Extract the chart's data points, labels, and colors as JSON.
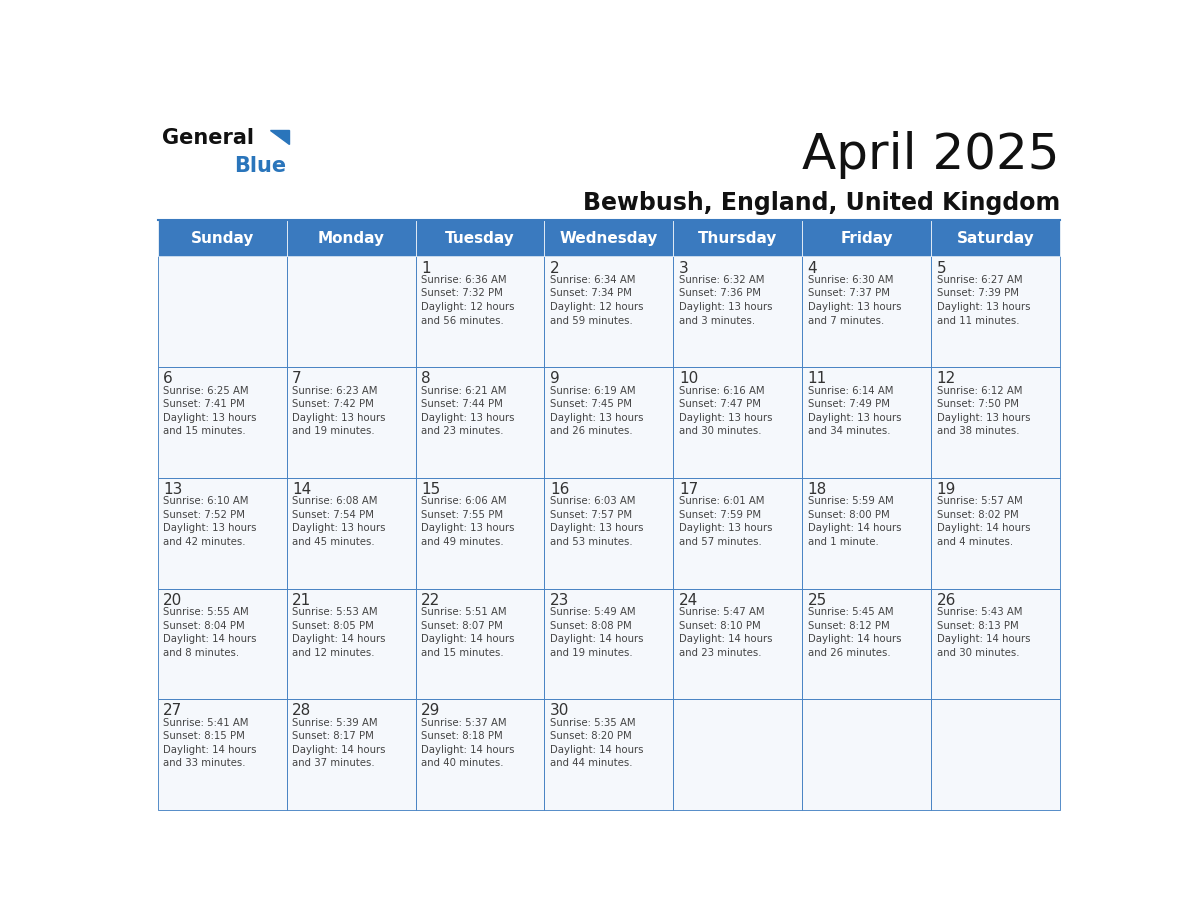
{
  "title": "April 2025",
  "subtitle": "Bewbush, England, United Kingdom",
  "header_color": "#3a7abf",
  "header_text_color": "#ffffff",
  "cell_bg_color": "#f5f8fc",
  "border_color": "#3a7abf",
  "text_color": "#333333",
  "day_num_color": "#333333",
  "logo_general_color": "#222222",
  "logo_blue_color": "#2a75bb",
  "day_names": [
    "Sunday",
    "Monday",
    "Tuesday",
    "Wednesday",
    "Thursday",
    "Friday",
    "Saturday"
  ],
  "weeks": [
    [
      {
        "day": 0,
        "text": ""
      },
      {
        "day": 0,
        "text": ""
      },
      {
        "day": 1,
        "text": "Sunrise: 6:36 AM\nSunset: 7:32 PM\nDaylight: 12 hours\nand 56 minutes."
      },
      {
        "day": 2,
        "text": "Sunrise: 6:34 AM\nSunset: 7:34 PM\nDaylight: 12 hours\nand 59 minutes."
      },
      {
        "day": 3,
        "text": "Sunrise: 6:32 AM\nSunset: 7:36 PM\nDaylight: 13 hours\nand 3 minutes."
      },
      {
        "day": 4,
        "text": "Sunrise: 6:30 AM\nSunset: 7:37 PM\nDaylight: 13 hours\nand 7 minutes."
      },
      {
        "day": 5,
        "text": "Sunrise: 6:27 AM\nSunset: 7:39 PM\nDaylight: 13 hours\nand 11 minutes."
      }
    ],
    [
      {
        "day": 6,
        "text": "Sunrise: 6:25 AM\nSunset: 7:41 PM\nDaylight: 13 hours\nand 15 minutes."
      },
      {
        "day": 7,
        "text": "Sunrise: 6:23 AM\nSunset: 7:42 PM\nDaylight: 13 hours\nand 19 minutes."
      },
      {
        "day": 8,
        "text": "Sunrise: 6:21 AM\nSunset: 7:44 PM\nDaylight: 13 hours\nand 23 minutes."
      },
      {
        "day": 9,
        "text": "Sunrise: 6:19 AM\nSunset: 7:45 PM\nDaylight: 13 hours\nand 26 minutes."
      },
      {
        "day": 10,
        "text": "Sunrise: 6:16 AM\nSunset: 7:47 PM\nDaylight: 13 hours\nand 30 minutes."
      },
      {
        "day": 11,
        "text": "Sunrise: 6:14 AM\nSunset: 7:49 PM\nDaylight: 13 hours\nand 34 minutes."
      },
      {
        "day": 12,
        "text": "Sunrise: 6:12 AM\nSunset: 7:50 PM\nDaylight: 13 hours\nand 38 minutes."
      }
    ],
    [
      {
        "day": 13,
        "text": "Sunrise: 6:10 AM\nSunset: 7:52 PM\nDaylight: 13 hours\nand 42 minutes."
      },
      {
        "day": 14,
        "text": "Sunrise: 6:08 AM\nSunset: 7:54 PM\nDaylight: 13 hours\nand 45 minutes."
      },
      {
        "day": 15,
        "text": "Sunrise: 6:06 AM\nSunset: 7:55 PM\nDaylight: 13 hours\nand 49 minutes."
      },
      {
        "day": 16,
        "text": "Sunrise: 6:03 AM\nSunset: 7:57 PM\nDaylight: 13 hours\nand 53 minutes."
      },
      {
        "day": 17,
        "text": "Sunrise: 6:01 AM\nSunset: 7:59 PM\nDaylight: 13 hours\nand 57 minutes."
      },
      {
        "day": 18,
        "text": "Sunrise: 5:59 AM\nSunset: 8:00 PM\nDaylight: 14 hours\nand 1 minute."
      },
      {
        "day": 19,
        "text": "Sunrise: 5:57 AM\nSunset: 8:02 PM\nDaylight: 14 hours\nand 4 minutes."
      }
    ],
    [
      {
        "day": 20,
        "text": "Sunrise: 5:55 AM\nSunset: 8:04 PM\nDaylight: 14 hours\nand 8 minutes."
      },
      {
        "day": 21,
        "text": "Sunrise: 5:53 AM\nSunset: 8:05 PM\nDaylight: 14 hours\nand 12 minutes."
      },
      {
        "day": 22,
        "text": "Sunrise: 5:51 AM\nSunset: 8:07 PM\nDaylight: 14 hours\nand 15 minutes."
      },
      {
        "day": 23,
        "text": "Sunrise: 5:49 AM\nSunset: 8:08 PM\nDaylight: 14 hours\nand 19 minutes."
      },
      {
        "day": 24,
        "text": "Sunrise: 5:47 AM\nSunset: 8:10 PM\nDaylight: 14 hours\nand 23 minutes."
      },
      {
        "day": 25,
        "text": "Sunrise: 5:45 AM\nSunset: 8:12 PM\nDaylight: 14 hours\nand 26 minutes."
      },
      {
        "day": 26,
        "text": "Sunrise: 5:43 AM\nSunset: 8:13 PM\nDaylight: 14 hours\nand 30 minutes."
      }
    ],
    [
      {
        "day": 27,
        "text": "Sunrise: 5:41 AM\nSunset: 8:15 PM\nDaylight: 14 hours\nand 33 minutes."
      },
      {
        "day": 28,
        "text": "Sunrise: 5:39 AM\nSunset: 8:17 PM\nDaylight: 14 hours\nand 37 minutes."
      },
      {
        "day": 29,
        "text": "Sunrise: 5:37 AM\nSunset: 8:18 PM\nDaylight: 14 hours\nand 40 minutes."
      },
      {
        "day": 30,
        "text": "Sunrise: 5:35 AM\nSunset: 8:20 PM\nDaylight: 14 hours\nand 44 minutes."
      },
      {
        "day": 0,
        "text": ""
      },
      {
        "day": 0,
        "text": ""
      },
      {
        "day": 0,
        "text": ""
      }
    ]
  ]
}
